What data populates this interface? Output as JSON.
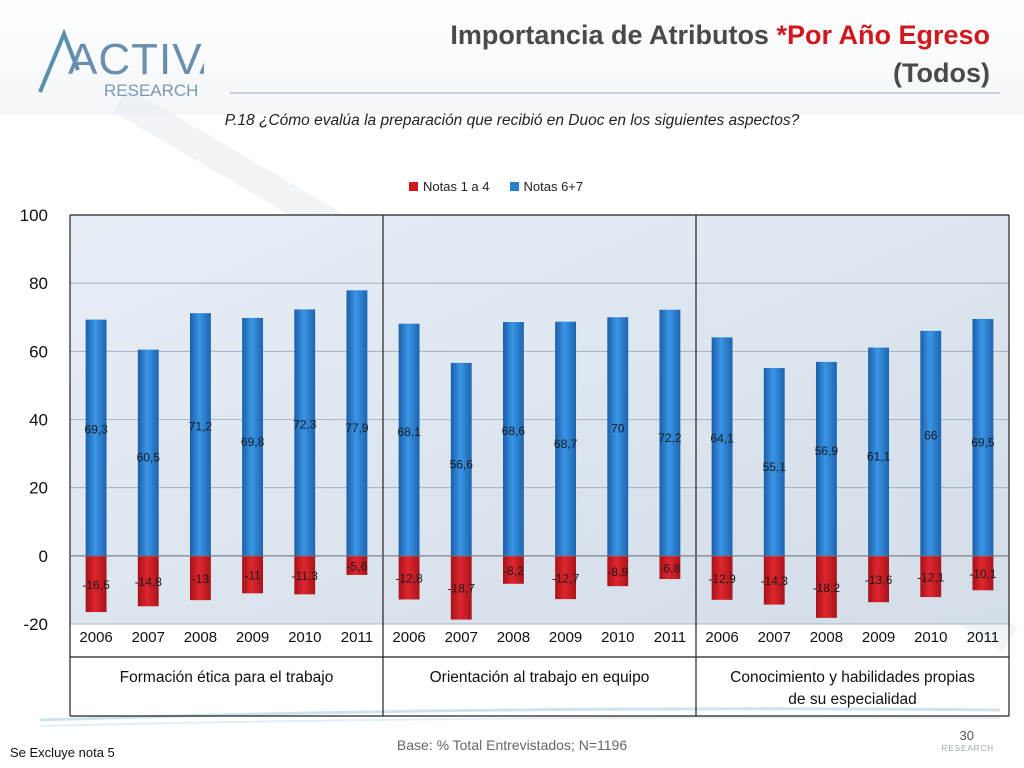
{
  "header": {
    "logo_text_main": "ACTIVA",
    "logo_text_sub": "RESEARCH",
    "title_part1": "Importancia de Atributos ",
    "title_part2": "*Por Año Egreso",
    "title_line2": "(Todos)",
    "question": "P.18 ¿Cómo evalúa la preparación que recibió en Duoc en los siguientes aspectos?"
  },
  "footer": {
    "base_note": "Base: % Total Entrevistados; N=1196",
    "footnote": "Se Excluye nota 5",
    "page_number": "30",
    "mark": "RESEARCH"
  },
  "colors": {
    "notas_1_4": "#d0181e",
    "notas_6_7": "#2a7fd0",
    "accent": "#d0181e",
    "plot_bg": "#dde6f0"
  },
  "chart_data": {
    "type": "bar",
    "ylim": [
      -20,
      100
    ],
    "yticks": [
      -20,
      0,
      20,
      40,
      60,
      80,
      100
    ],
    "legend": [
      "Notas 1 a 4",
      "Notas 6+7"
    ],
    "legend_position": "top",
    "groups": [
      {
        "label": "Formación ética para el trabajo",
        "categories": [
          "2006",
          "2007",
          "2008",
          "2009",
          "2010",
          "2011"
        ],
        "series": [
          {
            "name": "Notas 1 a 4",
            "values": [
              -16.5,
              -14.8,
              -13,
              -11,
              -11.3,
              -5.6
            ],
            "labels": [
              "-16,5",
              "-14,8",
              "-13",
              "-11",
              "-11,3",
              "-5,6"
            ]
          },
          {
            "name": "Notas 6+7",
            "values": [
              69.3,
              60.5,
              71.2,
              69.8,
              72.3,
              77.9
            ],
            "labels": [
              "69,3",
              "60,5",
              "71,2",
              "69,8",
              "72,3",
              "77,9"
            ]
          }
        ]
      },
      {
        "label": "Orientación al trabajo en equipo",
        "categories": [
          "2006",
          "2007",
          "2008",
          "2009",
          "2010",
          "2011"
        ],
        "series": [
          {
            "name": "Notas 1 a 4",
            "values": [
              -12.8,
              -18.7,
              -8.2,
              -12.7,
              -8.9,
              -6.8
            ],
            "labels": [
              "-12,8",
              "-18,7",
              "-8,2",
              "-12,7",
              "-8,9",
              "-6,8"
            ]
          },
          {
            "name": "Notas 6+7",
            "values": [
              68.1,
              56.6,
              68.6,
              68.7,
              70,
              72.2
            ],
            "labels": [
              "68,1",
              "56,6",
              "68,6",
              "68,7",
              "70",
              "72,2"
            ]
          }
        ]
      },
      {
        "label": "Conocimiento y habilidades propias de su especialidad",
        "categories": [
          "2006",
          "2007",
          "2008",
          "2009",
          "2010",
          "2011"
        ],
        "series": [
          {
            "name": "Notas 1 a 4",
            "values": [
              -12.9,
              -14.3,
              -18.2,
              -13.6,
              -12.1,
              -10.1
            ],
            "labels": [
              "-12,9",
              "-14,3",
              "-18,2",
              "-13,6",
              "-12,1",
              "-10,1"
            ]
          },
          {
            "name": "Notas 6+7",
            "values": [
              64.1,
              55.1,
              56.9,
              61.1,
              66,
              69.5
            ],
            "labels": [
              "64,1",
              "55,1",
              "56,9",
              "61,1",
              "66",
              "69,5"
            ]
          }
        ]
      }
    ]
  }
}
